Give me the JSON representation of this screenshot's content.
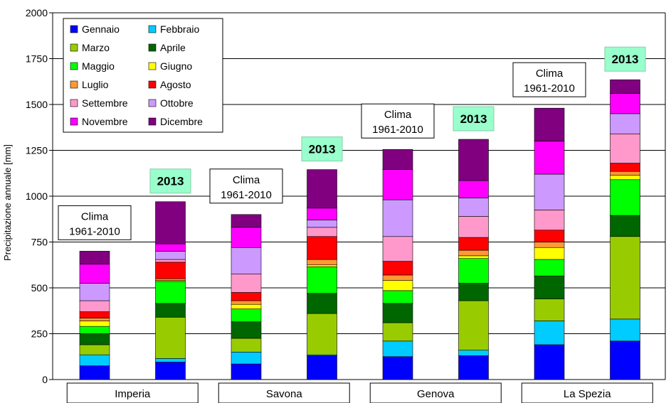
{
  "chart_data": {
    "type": "bar",
    "stacked": true,
    "ylabel": "Precipitazione annuale [mm]",
    "ylim": [
      0,
      2000
    ],
    "yticks": [
      0,
      250,
      500,
      750,
      1000,
      1250,
      1500,
      1750,
      2000
    ],
    "grid": true,
    "legend_position": "top-left",
    "regions": [
      "Imperia",
      "Savona",
      "Genova",
      "La Spezia"
    ],
    "bars": [
      {
        "region": "Imperia",
        "label_lines": [
          "Clima",
          "1961-2010"
        ],
        "highlight": false
      },
      {
        "region": "Imperia",
        "label_lines": [
          "2013"
        ],
        "highlight": true
      },
      {
        "region": "Savona",
        "label_lines": [
          "Clima",
          "1961-2010"
        ],
        "highlight": false
      },
      {
        "region": "Savona",
        "label_lines": [
          "2013"
        ],
        "highlight": true
      },
      {
        "region": "Genova",
        "label_lines": [
          "Clima",
          "1961-2010"
        ],
        "highlight": false
      },
      {
        "region": "Genova",
        "label_lines": [
          "2013"
        ],
        "highlight": true
      },
      {
        "region": "La Spezia",
        "label_lines": [
          "Clima",
          "1961-2010"
        ],
        "highlight": false
      },
      {
        "region": "La Spezia",
        "label_lines": [
          "2013"
        ],
        "highlight": true
      }
    ],
    "series": [
      {
        "name": "Gennaio",
        "color": "#0000ff",
        "values": [
          75,
          95,
          85,
          130,
          125,
          130,
          190,
          210
        ]
      },
      {
        "name": "Febbraio",
        "color": "#00ccff",
        "values": [
          60,
          20,
          65,
          5,
          85,
          30,
          130,
          120
        ]
      },
      {
        "name": "Marzo",
        "color": "#99cc00",
        "values": [
          55,
          225,
          75,
          225,
          100,
          270,
          120,
          450
        ]
      },
      {
        "name": "Aprile",
        "color": "#006600",
        "values": [
          60,
          75,
          90,
          110,
          105,
          95,
          125,
          115
        ]
      },
      {
        "name": "Maggio",
        "color": "#00ff00",
        "values": [
          40,
          120,
          70,
          145,
          70,
          135,
          90,
          195
        ]
      },
      {
        "name": "Giugno",
        "color": "#ffff00",
        "values": [
          30,
          5,
          25,
          10,
          55,
          15,
          65,
          25
        ]
      },
      {
        "name": "Luglio",
        "color": "#ff9933",
        "values": [
          15,
          10,
          20,
          30,
          30,
          30,
          30,
          20
        ]
      },
      {
        "name": "Agosto",
        "color": "#ff0000",
        "values": [
          35,
          90,
          45,
          125,
          75,
          70,
          65,
          45
        ]
      },
      {
        "name": "Settembre",
        "color": "#ff99cc",
        "values": [
          60,
          15,
          100,
          50,
          135,
          115,
          110,
          160
        ]
      },
      {
        "name": "Ottobre",
        "color": "#cc99ff",
        "values": [
          95,
          45,
          145,
          40,
          200,
          100,
          195,
          110
        ]
      },
      {
        "name": "Novembre",
        "color": "#ff00ff",
        "values": [
          105,
          40,
          110,
          65,
          165,
          95,
          180,
          110
        ]
      },
      {
        "name": "Dicembre",
        "color": "#800080",
        "values": [
          70,
          230,
          70,
          210,
          110,
          225,
          180,
          75
        ]
      }
    ]
  },
  "colors": {
    "gridline": "#000000",
    "label_box_2013": "#99ffcc",
    "plot_background": "#ffffff"
  }
}
